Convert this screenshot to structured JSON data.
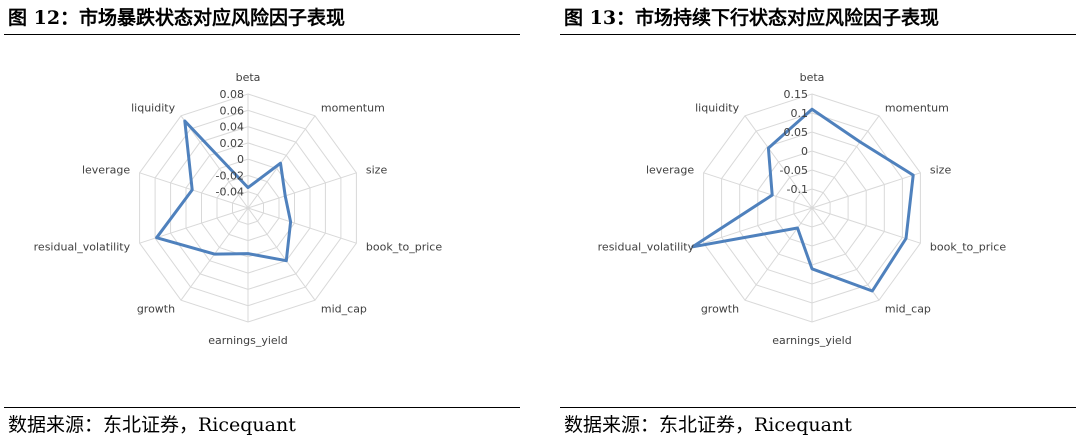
{
  "figures": [
    {
      "title": "图 12：市场暴跌状态对应风险因子表现",
      "source": "数据来源：东北证券，Ricequant",
      "chart_data": {
        "type": "radar",
        "categories": [
          "beta",
          "momentum",
          "size",
          "book_to_price",
          "mid_cap",
          "earnings_yield",
          "growth",
          "residual_volatility",
          "leverage",
          "liquidity"
        ],
        "series": [
          {
            "values": [
              -0.035,
              0.008,
              -0.012,
              -0.005,
              0.02,
              -0.004,
              0.01,
              0.058,
              0.012,
              0.072
            ]
          }
        ],
        "rlim": [
          -0.06,
          0.08
        ],
        "rticks": [
          -0.04,
          -0.02,
          0,
          0.02,
          0.04,
          0.06,
          0.08
        ],
        "rtick_labels": [
          "-0.04",
          "-0.02",
          "0",
          "0.02",
          "0.04",
          "0.06",
          "0.08"
        ],
        "grid": true,
        "line_color": "#4f81bd",
        "grid_color": "#d9d9d9"
      }
    },
    {
      "title": "图 13：市场持续下行状态对应风险因子表现",
      "source": "数据来源：东北证券，Ricequant",
      "chart_data": {
        "type": "radar",
        "categories": [
          "beta",
          "momentum",
          "size",
          "book_to_price",
          "mid_cap",
          "earnings_yield",
          "growth",
          "residual_volatility",
          "leverage",
          "liquidity"
        ],
        "series": [
          {
            "values": [
              0.11,
              0.065,
              0.13,
              0.11,
              0.12,
              0.01,
              -0.085,
              0.18,
              -0.04,
              0.045
            ]
          }
        ],
        "rlim": [
          -0.15,
          0.15
        ],
        "rticks": [
          -0.1,
          -0.05,
          0,
          0.05,
          0.1,
          0.15
        ],
        "rtick_labels": [
          "-0.1",
          "-0.05",
          "0",
          "0.05",
          "0.1",
          "0.15"
        ],
        "grid": true,
        "line_color": "#4f81bd",
        "grid_color": "#d9d9d9"
      }
    }
  ]
}
